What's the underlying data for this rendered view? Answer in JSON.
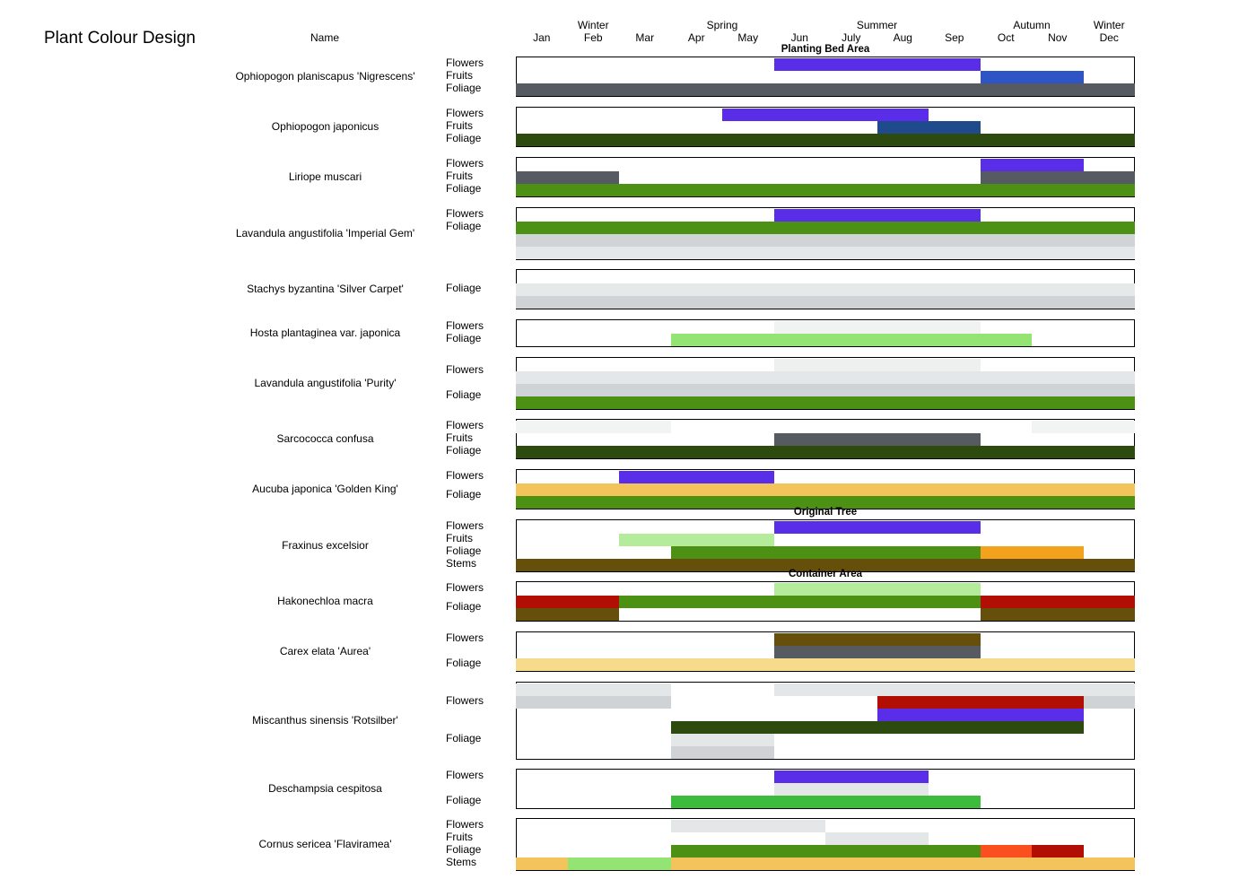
{
  "chart_data": {
    "type": "gantt-colour-calendar",
    "title": "Plant Colour Design",
    "name_header": "Name",
    "seasons": [
      {
        "label": "Winter",
        "center_month": 2
      },
      {
        "label": "Spring",
        "center_month": 4.5
      },
      {
        "label": "Summer",
        "center_month": 7.5
      },
      {
        "label": "Autumn",
        "center_month": 10.5
      },
      {
        "label": "Winter",
        "center_month": 12
      }
    ],
    "months": [
      "Jan",
      "Feb",
      "Mar",
      "Apr",
      "May",
      "Jun",
      "July",
      "Aug",
      "Sep",
      "Oct",
      "Nov",
      "Dec"
    ],
    "sections": [
      {
        "label": "Planting Bed Area",
        "before_plant": 0
      },
      {
        "label": "Original Tree",
        "before_plant": 9
      },
      {
        "label": "Container Area",
        "before_plant": 10
      }
    ],
    "plants": [
      {
        "name": "Ophiopogon planiscapus 'Nigrescens'",
        "rows": 3,
        "labels": [
          {
            "text": "Flowers",
            "row": 0
          },
          {
            "text": "Fruits",
            "row": 1
          },
          {
            "text": "Foliage",
            "row": 2
          }
        ],
        "bars": [
          {
            "row": 0,
            "start": 6,
            "end": 9,
            "color": "#5a2ee8"
          },
          {
            "row": 1,
            "start": 10,
            "end": 11,
            "color": "#2d55c6"
          },
          {
            "row": 2,
            "start": 1,
            "end": 12,
            "color": "#555b61"
          }
        ]
      },
      {
        "name": "Ophiopogon japonicus",
        "rows": 3,
        "labels": [
          {
            "text": "Flowers",
            "row": 0
          },
          {
            "text": "Fruits",
            "row": 1
          },
          {
            "text": "Foliage",
            "row": 2
          }
        ],
        "bars": [
          {
            "row": 0,
            "start": 5,
            "end": 8,
            "color": "#5a2ee8"
          },
          {
            "row": 1,
            "start": 8,
            "end": 9,
            "color": "#1f4a8c"
          },
          {
            "row": 2,
            "start": 1,
            "end": 12,
            "color": "#2d4a0f"
          }
        ]
      },
      {
        "name": "Liriope muscari",
        "rows": 3,
        "labels": [
          {
            "text": "Flowers",
            "row": 0
          },
          {
            "text": "Fruits",
            "row": 1
          },
          {
            "text": "Foliage",
            "row": 2
          }
        ],
        "bars": [
          {
            "row": 0,
            "start": 10,
            "end": 11,
            "color": "#5a2ee8"
          },
          {
            "row": 1,
            "start": 1,
            "end": 2,
            "color": "#555b61"
          },
          {
            "row": 1,
            "start": 10,
            "end": 12,
            "color": "#555b61"
          },
          {
            "row": 2,
            "start": 1,
            "end": 12,
            "color": "#4c9114"
          }
        ]
      },
      {
        "name": "Lavandula angustifolia 'Imperial Gem'",
        "rows": 4,
        "labels": [
          {
            "text": "Flowers",
            "row": 0
          },
          {
            "text": "Foliage",
            "row": 1
          }
        ],
        "bars": [
          {
            "row": 0,
            "start": 6,
            "end": 9,
            "color": "#5a2ee8"
          },
          {
            "row": 1,
            "start": 1,
            "end": 12,
            "color": "#4c9114"
          },
          {
            "row": 2,
            "start": 1,
            "end": 12,
            "color": "#d0d4d6"
          },
          {
            "row": 3,
            "start": 1,
            "end": 12,
            "color": "#e4e7e8"
          }
        ]
      },
      {
        "name": "Stachys byzantina 'Silver Carpet'",
        "rows": 3,
        "labels": [
          {
            "text": "Foliage",
            "row": 1
          }
        ],
        "bars": [
          {
            "row": 1,
            "start": 1,
            "end": 12,
            "color": "#e6e9e9"
          },
          {
            "row": 2,
            "start": 1,
            "end": 12,
            "color": "#cfd3d5"
          }
        ]
      },
      {
        "name": "Hosta plantaginea var. japonica",
        "rows": 2,
        "labels": [
          {
            "text": "Flowers",
            "row": 0
          },
          {
            "text": "Foliage",
            "row": 1
          }
        ],
        "bars": [
          {
            "row": 0,
            "start": 6,
            "end": 9,
            "color": "#f1f2f2"
          },
          {
            "row": 1,
            "start": 4,
            "end": 10,
            "color": "#94e474"
          }
        ]
      },
      {
        "name": "Lavandula angustifolia 'Purity'",
        "rows": 4,
        "labels": [
          {
            "text": "Flowers",
            "row": 0.5
          },
          {
            "text": "Foliage",
            "row": 2.5
          }
        ],
        "bars": [
          {
            "row": 0,
            "start": 6,
            "end": 9,
            "color": "#eef0f0"
          },
          {
            "row": 1,
            "start": 1,
            "end": 12,
            "color": "#e4e7e8"
          },
          {
            "row": 2,
            "start": 1,
            "end": 12,
            "color": "#cfd3d5"
          },
          {
            "row": 3,
            "start": 1,
            "end": 12,
            "color": "#4c9114"
          }
        ]
      },
      {
        "name": "Sarcococca confusa",
        "rows": 3,
        "labels": [
          {
            "text": "Flowers",
            "row": 0
          },
          {
            "text": "Fruits",
            "row": 1
          },
          {
            "text": "Foliage",
            "row": 2
          }
        ],
        "bars": [
          {
            "row": 0,
            "start": 1,
            "end": 3,
            "color": "#f2f3f3"
          },
          {
            "row": 0,
            "start": 11,
            "end": 12,
            "color": "#f2f3f3"
          },
          {
            "row": 1,
            "start": 6,
            "end": 9,
            "color": "#555b61"
          },
          {
            "row": 2,
            "start": 1,
            "end": 12,
            "color": "#2d4a0f"
          }
        ]
      },
      {
        "name": "Aucuba japonica 'Golden King'",
        "rows": 3,
        "labels": [
          {
            "text": "Flowers",
            "row": 0
          },
          {
            "text": "Foliage",
            "row": 1.5
          }
        ],
        "bars": [
          {
            "row": 0,
            "start": 3,
            "end": 5,
            "color": "#5a2ee8"
          },
          {
            "row": 1,
            "start": 1,
            "end": 12,
            "color": "#f4c45c"
          },
          {
            "row": 2,
            "start": 1,
            "end": 12,
            "color": "#4c9114"
          }
        ]
      },
      {
        "name": "Fraxinus excelsior",
        "rows": 4,
        "labels": [
          {
            "text": "Flowers",
            "row": 0
          },
          {
            "text": "Fruits",
            "row": 1
          },
          {
            "text": "Foliage",
            "row": 2
          },
          {
            "text": "Stems",
            "row": 3
          }
        ],
        "bars": [
          {
            "row": 0,
            "start": 6,
            "end": 9,
            "color": "#5a2ee8"
          },
          {
            "row": 1,
            "start": 3,
            "end": 5,
            "color": "#b4ec9c"
          },
          {
            "row": 2,
            "start": 4,
            "end": 9,
            "color": "#4c9114"
          },
          {
            "row": 2,
            "start": 10,
            "end": 11,
            "color": "#f2a21d"
          },
          {
            "row": 3,
            "start": 1,
            "end": 12,
            "color": "#654f0b"
          }
        ]
      },
      {
        "name": "Hakonechloa macra",
        "rows": 3,
        "labels": [
          {
            "text": "Flowers",
            "row": 0
          },
          {
            "text": "Foliage",
            "row": 1.5
          }
        ],
        "bars": [
          {
            "row": 0,
            "start": 6,
            "end": 9,
            "color": "#b4ec9c"
          },
          {
            "row": 1,
            "start": 1,
            "end": 2,
            "color": "#b10f04"
          },
          {
            "row": 1,
            "start": 3,
            "end": 9,
            "color": "#4c9114"
          },
          {
            "row": 1,
            "start": 10,
            "end": 12,
            "color": "#b10f04"
          },
          {
            "row": 2,
            "start": 1,
            "end": 2,
            "color": "#654f0b"
          },
          {
            "row": 2,
            "start": 10,
            "end": 12,
            "color": "#654f0b"
          }
        ]
      },
      {
        "name": "Carex elata 'Aurea'",
        "rows": 3,
        "labels": [
          {
            "text": "Flowers",
            "row": 0
          },
          {
            "text": "Foliage",
            "row": 2
          }
        ],
        "bars": [
          {
            "row": 0,
            "start": 6,
            "end": 9,
            "color": "#654f0b"
          },
          {
            "row": 1,
            "start": 6,
            "end": 9,
            "color": "#555b61"
          },
          {
            "row": 2,
            "start": 1,
            "end": 12,
            "color": "#f6dc8a"
          }
        ]
      },
      {
        "name": "Miscanthus sinensis 'Rotsilber'",
        "rows": 6,
        "labels": [
          {
            "text": "Flowers",
            "row": 1
          },
          {
            "text": "Foliage",
            "row": 4
          }
        ],
        "bars": [
          {
            "row": 0,
            "start": 1,
            "end": 3,
            "color": "#e4e7e8"
          },
          {
            "row": 0,
            "start": 6,
            "end": 12,
            "color": "#e4e7e8"
          },
          {
            "row": 1,
            "start": 1,
            "end": 3,
            "color": "#cfd3d5"
          },
          {
            "row": 1,
            "start": 8,
            "end": 11,
            "color": "#b10f04"
          },
          {
            "row": 1,
            "start": 12,
            "end": 12,
            "color": "#cfd3d5"
          },
          {
            "row": 2,
            "start": 8,
            "end": 11,
            "color": "#5a2ee8"
          },
          {
            "row": 3,
            "start": 4,
            "end": 11,
            "color": "#2d4a0f"
          },
          {
            "row": 4,
            "start": 4,
            "end": 5,
            "color": "#e4e7e8"
          },
          {
            "row": 5,
            "start": 4,
            "end": 5,
            "color": "#cfd3d5"
          }
        ]
      },
      {
        "name": "Deschampsia cespitosa",
        "rows": 3,
        "labels": [
          {
            "text": "Flowers",
            "row": 0
          },
          {
            "text": "Foliage",
            "row": 2
          }
        ],
        "bars": [
          {
            "row": 0,
            "start": 6,
            "end": 8,
            "color": "#5a2ee8"
          },
          {
            "row": 1,
            "start": 6,
            "end": 8,
            "color": "#e4e7e8"
          },
          {
            "row": 2,
            "start": 4,
            "end": 9,
            "color": "#3cbb3c"
          }
        ]
      },
      {
        "name": "Cornus sericea 'Flaviramea'",
        "rows": 4,
        "labels": [
          {
            "text": "Flowers",
            "row": 0
          },
          {
            "text": "Fruits",
            "row": 1
          },
          {
            "text": "Foliage",
            "row": 2
          },
          {
            "text": "Stems",
            "row": 3
          }
        ],
        "bars": [
          {
            "row": 0,
            "start": 4,
            "end": 6,
            "color": "#e4e7e8"
          },
          {
            "row": 1,
            "start": 7,
            "end": 8,
            "color": "#e4e7e8"
          },
          {
            "row": 2,
            "start": 4,
            "end": 9,
            "color": "#4c9114"
          },
          {
            "row": 2,
            "start": 10,
            "end": 10,
            "color": "#fa5020"
          },
          {
            "row": 2,
            "start": 11,
            "end": 11,
            "color": "#b10f04"
          },
          {
            "row": 3,
            "start": 1,
            "end": 1,
            "color": "#f4c45c"
          },
          {
            "row": 3,
            "start": 2,
            "end": 3,
            "color": "#94e474"
          },
          {
            "row": 3,
            "start": 4,
            "end": 12,
            "color": "#f4c45c"
          }
        ]
      }
    ]
  }
}
